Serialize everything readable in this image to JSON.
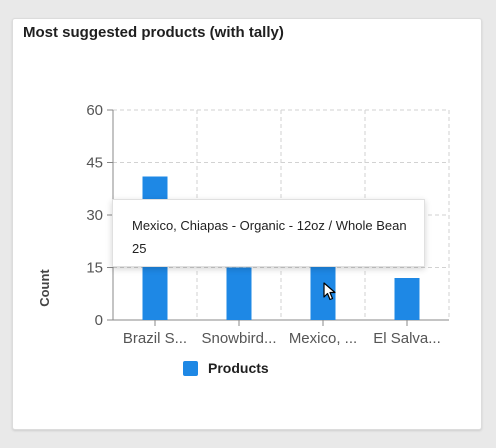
{
  "card": {
    "title": "Most suggested products (with tally)"
  },
  "chart_data": {
    "type": "bar",
    "categories": [
      "Brazil S...",
      "Snowbird...",
      "Mexico, ...",
      "El Salva..."
    ],
    "series": [
      {
        "name": "Products",
        "values": [
          41,
          15,
          25,
          12
        ],
        "color": "#1e88e5"
      }
    ],
    "ylabel": "Count",
    "xlabel": "",
    "ylim": [
      0,
      60
    ],
    "yticks": [
      0,
      15,
      30,
      45,
      60
    ],
    "grid": true,
    "legend": "bottom"
  },
  "tooltip": {
    "category": "Mexico, Chiapas - Organic - 12oz / Whole Bean",
    "value": "25"
  }
}
